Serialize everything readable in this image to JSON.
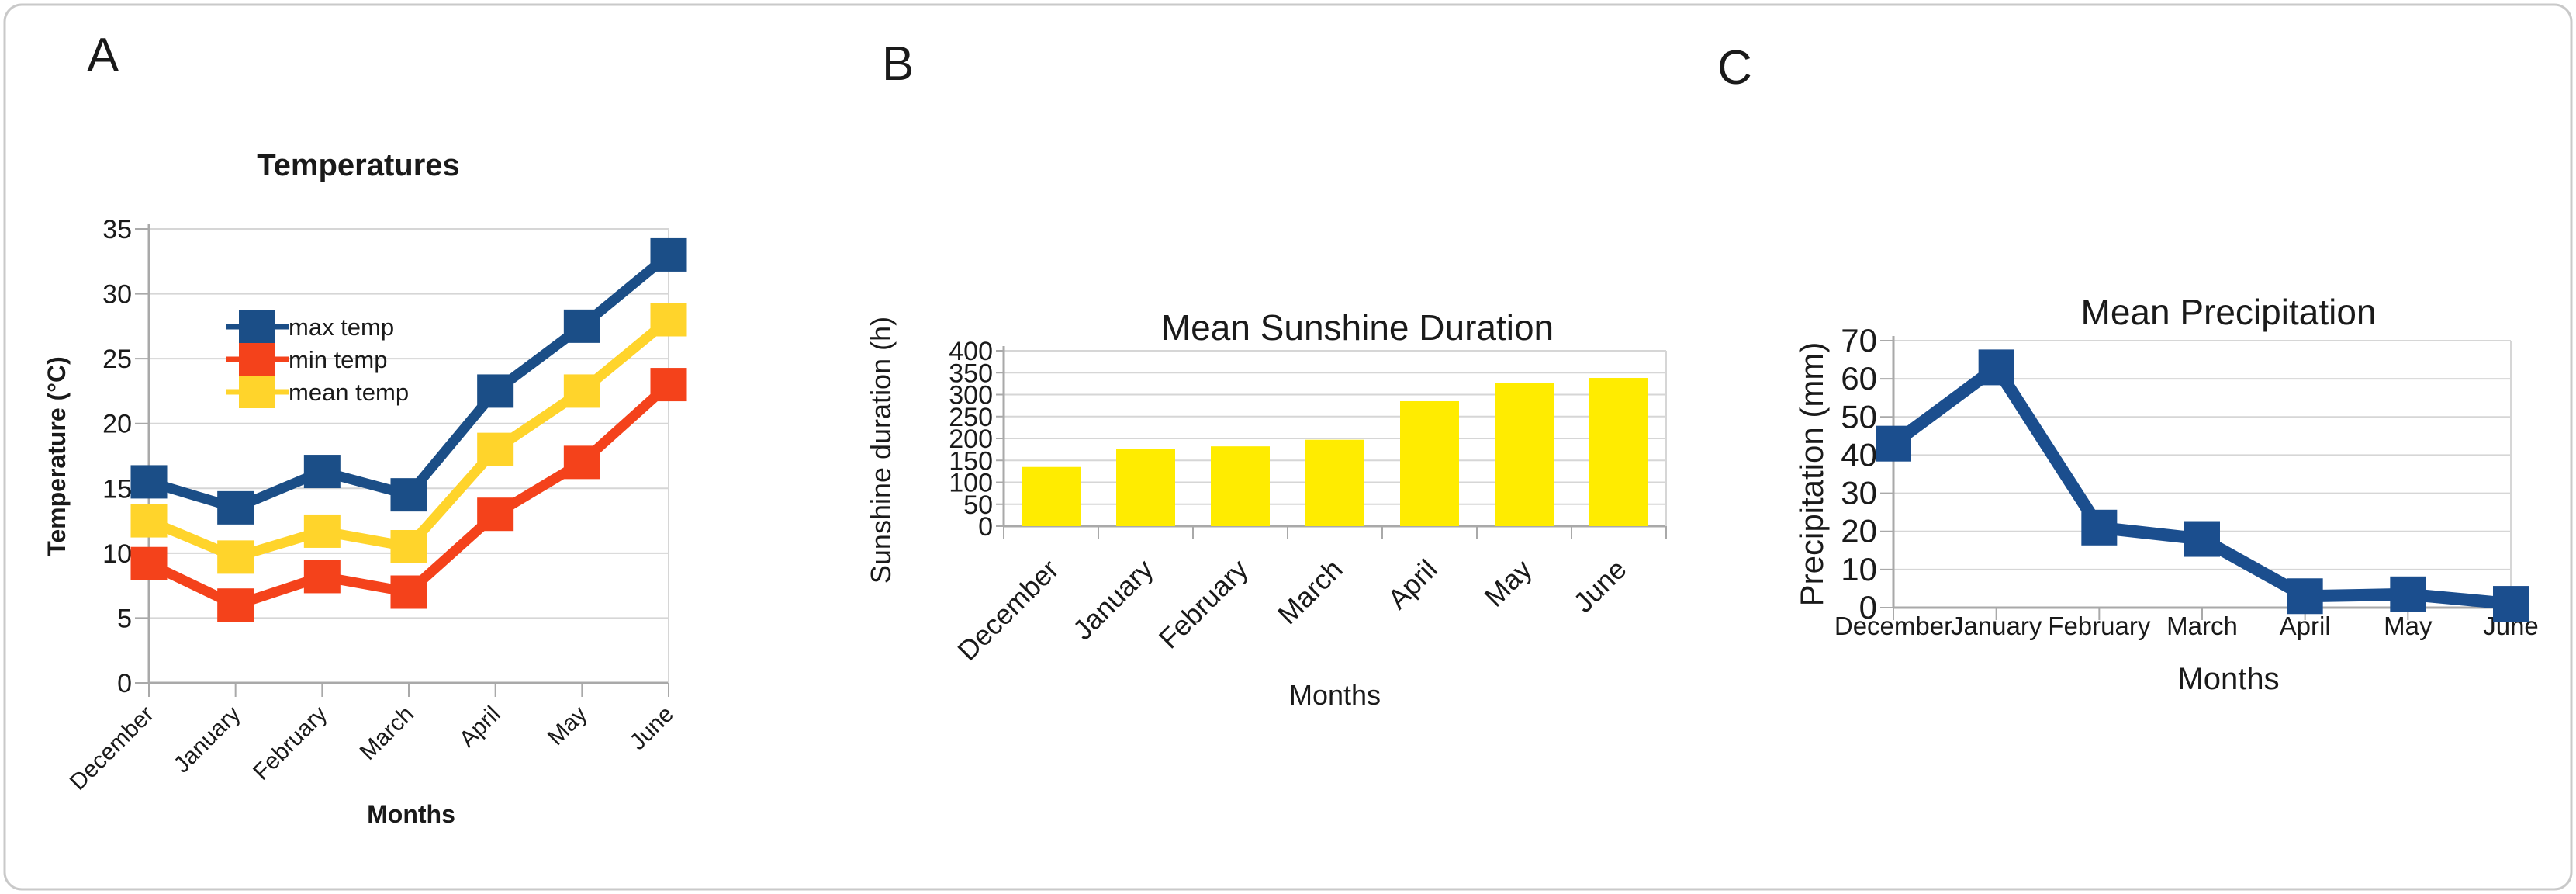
{
  "figure": {
    "background_color": "#ffffff",
    "border_color": "#c9c9c9",
    "grid_color": "#d6d6d6",
    "axis_color": "#a9a9a9",
    "text_color": "#1a1a1a",
    "tick_label_color": "#262626"
  },
  "chart_data": [
    {
      "id": "A",
      "panel_label": "A",
      "type": "line",
      "title": "Temperatures",
      "xlabel": "Months",
      "ylabel": "Temperature (°C)",
      "categories": [
        "December",
        "January",
        "February",
        "March",
        "April",
        "May",
        "June"
      ],
      "ylim": [
        0,
        35
      ],
      "ytick_step": 5,
      "grid": true,
      "legend_position": "inside-top-left",
      "marker": "square",
      "series": [
        {
          "name": "max temp",
          "color": "#1B4E87",
          "values": [
            15.5,
            13.5,
            16.3,
            14.5,
            22.5,
            27.5,
            33
          ]
        },
        {
          "name": "min temp",
          "color": "#F4421B",
          "values": [
            9.2,
            6,
            8.2,
            7,
            13,
            17,
            23
          ]
        },
        {
          "name": "mean temp",
          "color": "#FFD42B",
          "values": [
            12.5,
            9.7,
            11.7,
            10.5,
            18,
            22.5,
            28
          ]
        }
      ]
    },
    {
      "id": "B",
      "panel_label": "B",
      "type": "bar",
      "title": "Mean Sunshine Duration",
      "xlabel": "Months",
      "ylabel": "Sunshine duration (h)",
      "categories": [
        "December",
        "January",
        "February",
        "March",
        "April",
        "May",
        "June"
      ],
      "ylim": [
        0,
        400
      ],
      "ytick_step": 50,
      "grid": true,
      "bar_color": "#FFEC00",
      "values": [
        135,
        176,
        182,
        197,
        285,
        327,
        338
      ]
    },
    {
      "id": "C",
      "panel_label": "C",
      "type": "line",
      "title": "Mean Precipitation",
      "xlabel": "Months",
      "ylabel": "Precipitation (mm)",
      "categories": [
        "December",
        "January",
        "February",
        "March",
        "April",
        "May",
        "June"
      ],
      "ylim": [
        0,
        70
      ],
      "ytick_step": 10,
      "grid": true,
      "marker": "square",
      "series": [
        {
          "name": "precipitation",
          "color": "#1B4E8E",
          "values": [
            43,
            63,
            21,
            18,
            3,
            3.5,
            1
          ]
        }
      ]
    }
  ]
}
